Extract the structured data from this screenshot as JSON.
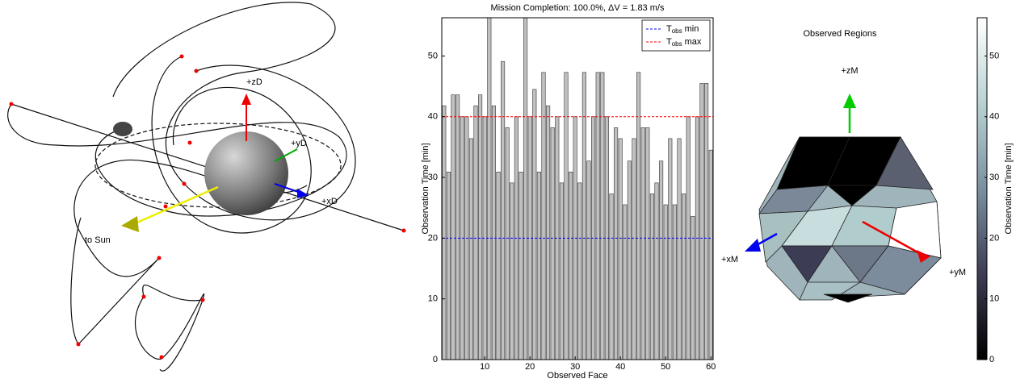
{
  "chart_data": [
    {
      "type": "bar",
      "title": "Mission Completion: 100.0%, ΔV = 1.83 m/s",
      "xlabel": "Observed Face",
      "ylabel": "Observation Time [min]",
      "values": [
        41.8,
        30.9,
        43.6,
        43.6,
        40,
        40,
        36.4,
        41.8,
        43.6,
        40,
        56.3,
        41.8,
        30.9,
        49.1,
        38.2,
        29.1,
        40,
        30.9,
        56.3,
        40,
        44.5,
        30.9,
        47.3,
        41.8,
        38.2,
        40,
        29.1,
        47.3,
        30.9,
        40,
        29.1,
        47.3,
        32.7,
        40,
        47.3,
        47.3,
        40,
        27.3,
        38.2,
        36.4,
        25.5,
        32.7,
        36.4,
        47.3,
        38.2,
        38.2,
        27.3,
        29.1,
        32.7,
        25.5,
        36.4,
        25.5,
        36.4,
        27.3,
        40,
        23.6,
        40,
        45.5,
        45.5,
        34.5
      ],
      "color": "#c0c0c0",
      "xlim": [
        0.5,
        60.5
      ],
      "xticks": [
        10,
        20,
        30,
        40,
        50,
        60
      ],
      "ylim": [
        0,
        56.3
      ],
      "yticks": [
        0,
        10,
        20,
        30,
        40,
        50
      ],
      "legend": "upper right",
      "hlines": [
        {
          "name_parts": [
            "T",
            "obs",
            "min"
          ],
          "value": 20,
          "color": "#0000ff"
        },
        {
          "name_parts": [
            "T",
            "obs",
            "max"
          ],
          "value": 40,
          "color": "#ff0000"
        }
      ]
    },
    {
      "type": "colorbar",
      "ylabel": "Observation Time [min]",
      "ylim": [
        0,
        56.3
      ],
      "yticks": [
        0,
        10,
        20,
        30,
        40,
        50
      ],
      "colormap": [
        "#000000",
        "#3c3c54",
        "#7a90a0",
        "#b8d2d2",
        "#ffffff"
      ]
    }
  ],
  "orbit_view": {
    "labels": [
      "+zD",
      "+yD",
      "+xD",
      "to Sun"
    ]
  },
  "region_view": {
    "title": "Observed Regions",
    "labels": [
      "+zM",
      "+xM",
      "+yM"
    ]
  }
}
